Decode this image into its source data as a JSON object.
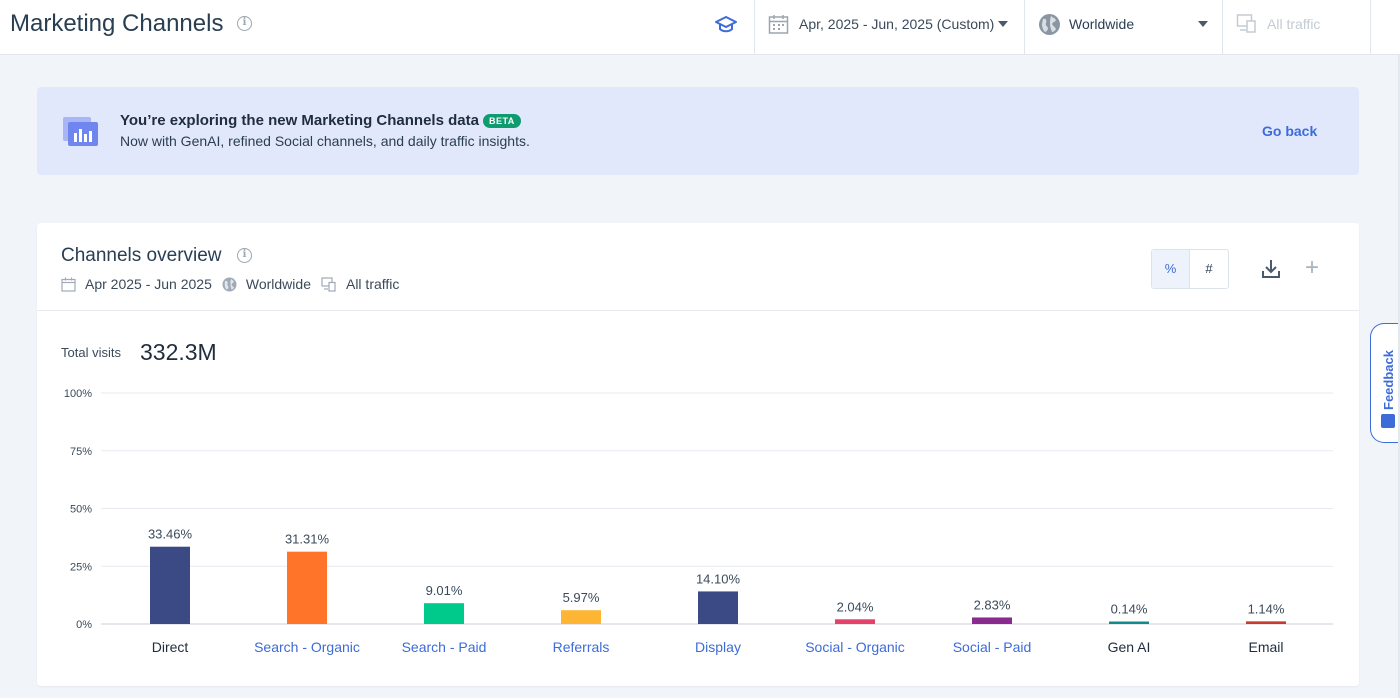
{
  "header": {
    "title": "Marketing Channels",
    "date_range": "Apr, 2025 - Jun, 2025 (Custom)",
    "country": "Worldwide",
    "traffic": "All traffic"
  },
  "banner": {
    "title": "You’re exploring the new Marketing Channels data",
    "badge": "BETA",
    "subtitle": "Now with GenAI, refined Social channels, and daily traffic insights.",
    "action": "Go back"
  },
  "card": {
    "title": "Channels overview",
    "date": "Apr 2025 - Jun 2025",
    "country": "Worldwide",
    "traffic": "All traffic",
    "toggle_percent": "%",
    "toggle_number": "#",
    "total_label": "Total visits",
    "total_value": "332.3M"
  },
  "feedback": {
    "label": "Feedback"
  },
  "colors": {
    "accent": "#3d6bd9",
    "banner_bg": "#e2e8fc",
    "beta": "#0e9b6d"
  },
  "chart_data": {
    "type": "bar",
    "categories": [
      "Direct",
      "Search - Organic",
      "Search - Paid",
      "Referrals",
      "Display",
      "Social - Organic",
      "Social - Paid",
      "Gen AI",
      "Email"
    ],
    "values": [
      33.46,
      31.31,
      9.01,
      5.97,
      14.1,
      2.04,
      2.83,
      0.14,
      1.14
    ],
    "value_labels": [
      "33.46%",
      "31.31%",
      "9.01%",
      "5.97%",
      "14.10%",
      "2.04%",
      "2.83%",
      "0.14%",
      "1.14%"
    ],
    "colors": [
      "#3b4a85",
      "#ff7428",
      "#00c98c",
      "#ffb534",
      "#3b4a85",
      "#e6416d",
      "#8b2a8e",
      "#0f8b8d",
      "#c73a2f"
    ],
    "link_categories": [
      false,
      true,
      true,
      true,
      true,
      true,
      true,
      false,
      false
    ],
    "yticks": [
      "100%",
      "75%",
      "50%",
      "25%",
      "0%"
    ],
    "ylim": [
      0,
      100
    ],
    "grid": true
  }
}
